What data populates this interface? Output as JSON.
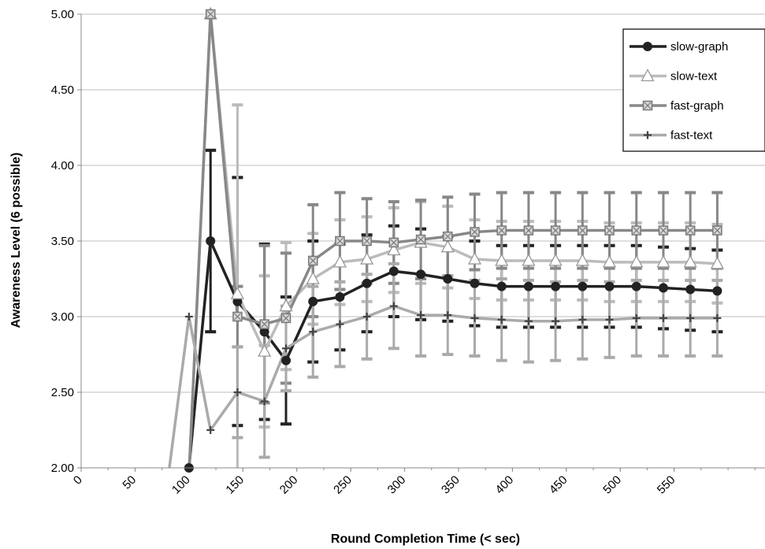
{
  "chart_data": {
    "type": "line",
    "title": "",
    "xlabel": "Round Completion Time (< sec)",
    "ylabel": "Awareness Level (6 possible)",
    "ylim": [
      2.0,
      5.0
    ],
    "xlim": [
      0,
      600
    ],
    "xticks": [
      "0",
      "50",
      "100",
      "150",
      "200",
      "250",
      "300",
      "350",
      "400",
      "450",
      "500",
      "550"
    ],
    "yticks": [
      "2.00",
      "2.50",
      "3.00",
      "3.50",
      "4.00",
      "4.50",
      "5.00"
    ],
    "grid": "horizontal",
    "legend_position": "top-right",
    "x": [
      80,
      100,
      120,
      145,
      170,
      190,
      215,
      240,
      265,
      290,
      315,
      340,
      365,
      390,
      415,
      440,
      465,
      490,
      515,
      540,
      565,
      590
    ],
    "series": [
      {
        "name": "slow-graph",
        "color": "#222222",
        "marker": "circle",
        "values": [
          1.9,
          2.0,
          3.5,
          3.1,
          2.9,
          2.71,
          3.1,
          3.13,
          3.22,
          3.3,
          3.28,
          3.25,
          3.22,
          3.2,
          3.2,
          3.2,
          3.2,
          3.2,
          3.2,
          3.19,
          3.18,
          3.17
        ],
        "errors": [
          null,
          null,
          0.6,
          0.82,
          0.58,
          0.42,
          0.4,
          0.35,
          0.32,
          0.3,
          0.3,
          0.28,
          0.28,
          0.27,
          0.27,
          0.27,
          0.27,
          0.27,
          0.27,
          0.27,
          0.27,
          0.27
        ]
      },
      {
        "name": "slow-text",
        "color": "#bbbbbb",
        "marker": "triangle",
        "values": [
          1.9,
          1.95,
          5.0,
          3.15,
          2.77,
          3.07,
          3.25,
          3.36,
          3.38,
          3.44,
          3.49,
          3.46,
          3.38,
          3.37,
          3.37,
          3.37,
          3.37,
          3.36,
          3.36,
          3.36,
          3.36,
          3.35
        ],
        "errors": [
          null,
          null,
          null,
          1.25,
          0.5,
          0.42,
          0.3,
          0.28,
          0.28,
          0.28,
          0.27,
          0.27,
          0.26,
          0.26,
          0.26,
          0.26,
          0.26,
          0.26,
          0.26,
          0.26,
          0.26,
          0.26
        ]
      },
      {
        "name": "fast-graph",
        "color": "#888888",
        "marker": "square",
        "values": [
          1.9,
          1.95,
          5.0,
          3.0,
          2.95,
          2.99,
          3.37,
          3.5,
          3.5,
          3.49,
          3.51,
          3.53,
          3.56,
          3.57,
          3.57,
          3.57,
          3.57,
          3.57,
          3.57,
          3.57,
          3.57,
          3.57
        ],
        "errors": [
          null,
          null,
          null,
          0.2,
          0.52,
          0.43,
          0.37,
          0.32,
          0.28,
          0.27,
          0.26,
          0.26,
          0.25,
          0.25,
          0.25,
          0.25,
          0.25,
          0.25,
          0.25,
          0.25,
          0.25,
          0.25
        ]
      },
      {
        "name": "fast-text",
        "color": "#aaaaaa",
        "marker": "plus",
        "values": [
          1.9,
          3.0,
          2.25,
          2.5,
          2.44,
          2.79,
          2.9,
          2.95,
          3.0,
          3.07,
          3.01,
          3.01,
          2.99,
          2.98,
          2.97,
          2.97,
          2.98,
          2.98,
          2.99,
          2.99,
          2.99,
          2.99
        ],
        "errors": [
          null,
          null,
          null,
          0.3,
          0.37,
          0.28,
          0.3,
          0.28,
          0.28,
          0.28,
          0.27,
          0.26,
          0.25,
          0.27,
          0.27,
          0.26,
          0.26,
          0.25,
          0.25,
          0.25,
          0.25,
          0.25
        ]
      }
    ]
  }
}
